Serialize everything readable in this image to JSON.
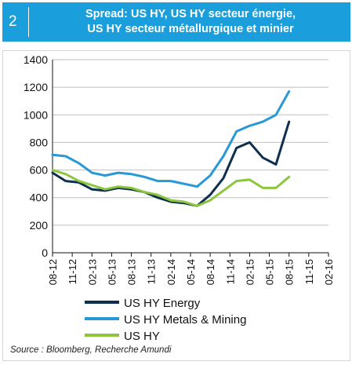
{
  "header": {
    "figure_number": "2",
    "title_line1": "Spread: US HY, US HY secteur énergie,",
    "title_line2": "US HY secteur métallurgique et minier"
  },
  "source": "Source : Bloomberg, Recherche Amundi",
  "colors": {
    "header_bg": "#1a9fdc",
    "us_hy_energy": "#0e2f4f",
    "us_hy_metals_mining": "#2899d6",
    "us_hy": "#8cc63f",
    "grid": "#bfbfbf"
  },
  "chart_data": {
    "type": "line",
    "title": "Spread: US HY, US HY secteur énergie, US HY secteur métallurgique et minier",
    "xlabel": "",
    "ylabel": "",
    "ylim": [
      0,
      1400
    ],
    "yticks": [
      0,
      200,
      400,
      600,
      800,
      1000,
      1200,
      1400
    ],
    "xticks": [
      "08-12",
      "11-12",
      "02-13",
      "05-13",
      "08-13",
      "11-13",
      "02-14",
      "05-14",
      "08-14",
      "11-14",
      "02-15",
      "05-15",
      "08-15",
      "11-15",
      "02-16"
    ],
    "grid": "horizontal",
    "legend_position": "below",
    "x": [
      "08-12",
      "10-12",
      "12-12",
      "02-13",
      "04-13",
      "06-13",
      "08-13",
      "10-13",
      "12-13",
      "02-14",
      "04-14",
      "06-14",
      "08-14",
      "10-14",
      "12-14",
      "02-15",
      "04-15",
      "06-15",
      "08-15"
    ],
    "series": [
      {
        "name": "US HY Energy",
        "values": [
          580,
          520,
          510,
          460,
          450,
          470,
          460,
          440,
          400,
          370,
          360,
          340,
          420,
          540,
          760,
          800,
          690,
          640,
          950
        ]
      },
      {
        "name": "US HY Metals & Mining",
        "values": [
          710,
          700,
          650,
          580,
          560,
          580,
          570,
          550,
          520,
          520,
          500,
          480,
          560,
          700,
          880,
          920,
          950,
          1000,
          1170
        ]
      },
      {
        "name": "US HY",
        "values": [
          600,
          570,
          520,
          490,
          460,
          480,
          470,
          440,
          420,
          380,
          370,
          340,
          380,
          450,
          520,
          530,
          470,
          470,
          550
        ]
      }
    ]
  }
}
